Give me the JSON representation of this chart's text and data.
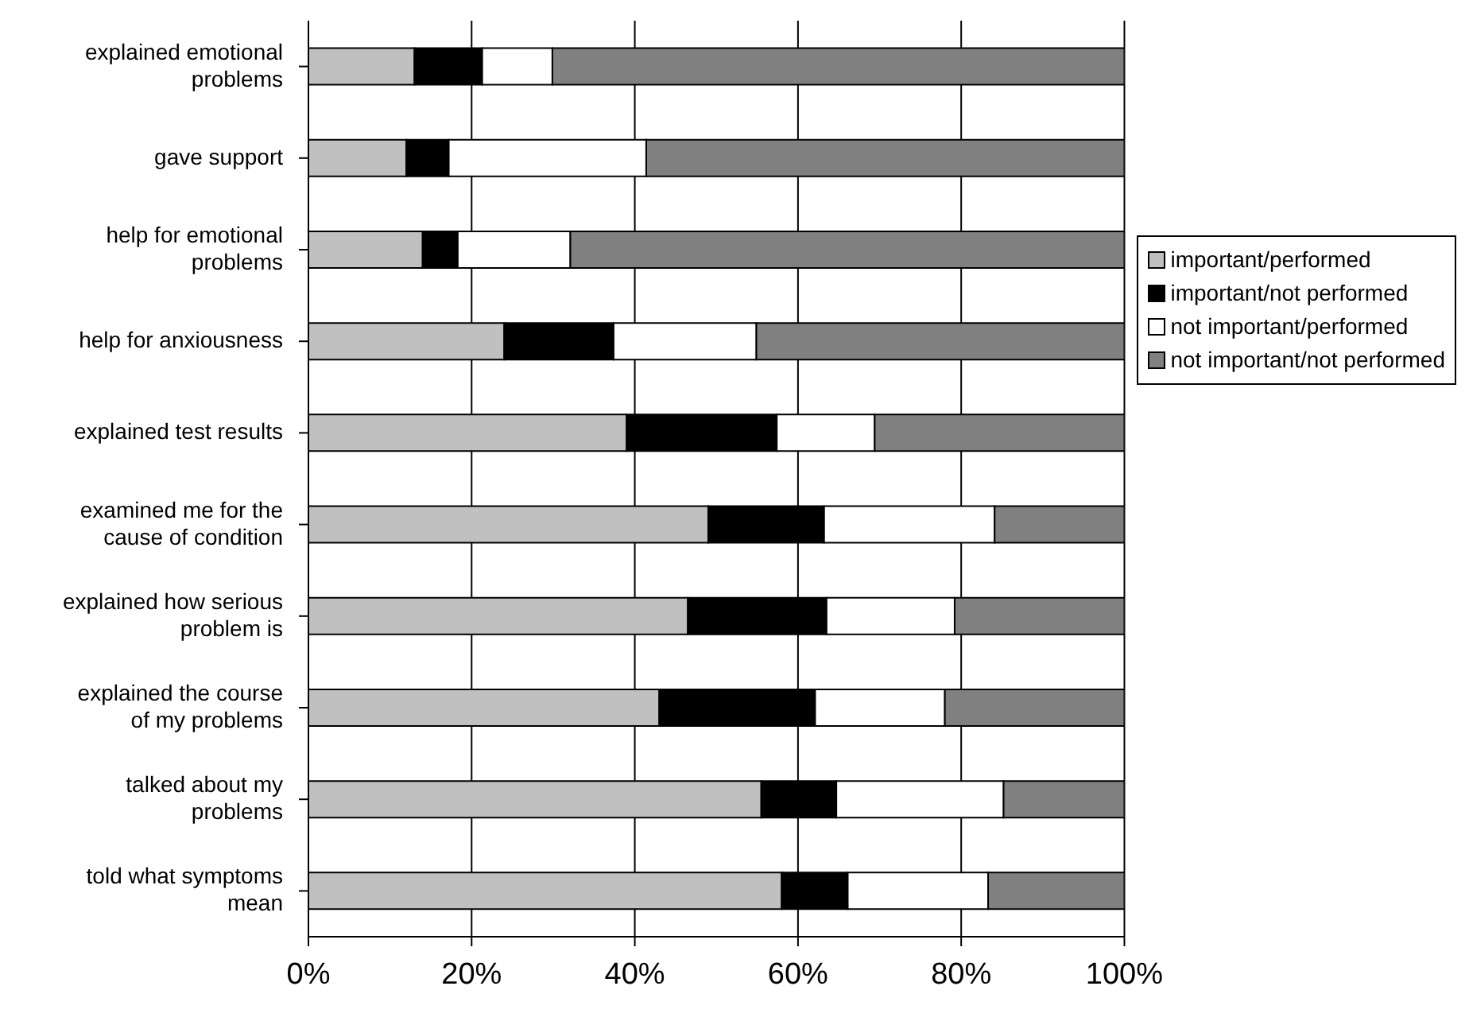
{
  "chart_data": {
    "type": "bar",
    "orientation": "horizontal",
    "stacked": true,
    "categories": [
      "explained emotional problems",
      "gave support",
      "help for emotional problems",
      "help for anxiousness",
      "explained test results",
      "examined me for the cause of condition",
      "explained how serious problem is",
      "explained the course of my problems",
      "talked about my problems",
      "told what symptoms mean"
    ],
    "series": [
      {
        "name": "important/performed",
        "color": "#c0c0c0",
        "values": [
          13,
          12,
          14,
          24,
          39,
          49,
          46.5,
          43,
          55.5,
          58
        ]
      },
      {
        "name": "important/not performed",
        "color": "#000000",
        "values": [
          8.3,
          5.2,
          4.3,
          13.4,
          18.4,
          14.2,
          17,
          19.1,
          9.2,
          8.1
        ]
      },
      {
        "name": "not important/performed",
        "color": "#ffffff",
        "values": [
          8.6,
          24.2,
          13.8,
          17.5,
          12,
          20.9,
          15.7,
          15.9,
          20.5,
          17.2
        ]
      },
      {
        "name": "not important/not performed",
        "color": "#808080",
        "values": [
          70.1,
          58.6,
          67.9,
          45.1,
          30.6,
          15.9,
          20.8,
          22,
          14.8,
          16.7
        ]
      }
    ],
    "xlim": [
      0,
      100
    ],
    "xticks": [
      {
        "value": 0,
        "label": "0%"
      },
      {
        "value": 20,
        "label": "20%"
      },
      {
        "value": 40,
        "label": "40%"
      },
      {
        "value": 60,
        "label": "60%"
      },
      {
        "value": 80,
        "label": "80%"
      },
      {
        "value": 100,
        "label": "100%"
      }
    ],
    "grid": "x",
    "legend": "right"
  }
}
